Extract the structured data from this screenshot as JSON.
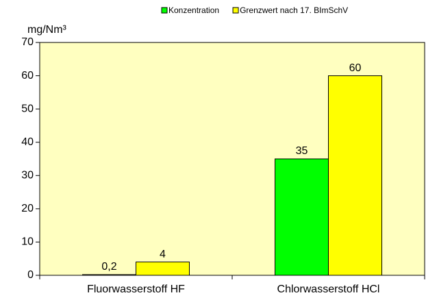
{
  "chart_data": {
    "type": "bar",
    "y_label": "mg/Nm³",
    "categories": [
      "Fluorwasserstoff HF",
      "Chlorwasserstoff HCl"
    ],
    "series": [
      {
        "name": "Konzentration",
        "color": "#00ff00",
        "values": [
          0.2,
          35
        ],
        "value_labels": [
          "0,2",
          "35"
        ]
      },
      {
        "name": "Grenzwert nach 17. BImSchV",
        "color": "#ffff00",
        "values": [
          4,
          60
        ],
        "value_labels": [
          "4",
          "60"
        ]
      }
    ],
    "ylim": [
      0,
      70
    ],
    "yticks": [
      0,
      10,
      20,
      30,
      40,
      50,
      60,
      70
    ],
    "grid": false,
    "legend": "top-right",
    "plot_background": "#ffffc0"
  }
}
